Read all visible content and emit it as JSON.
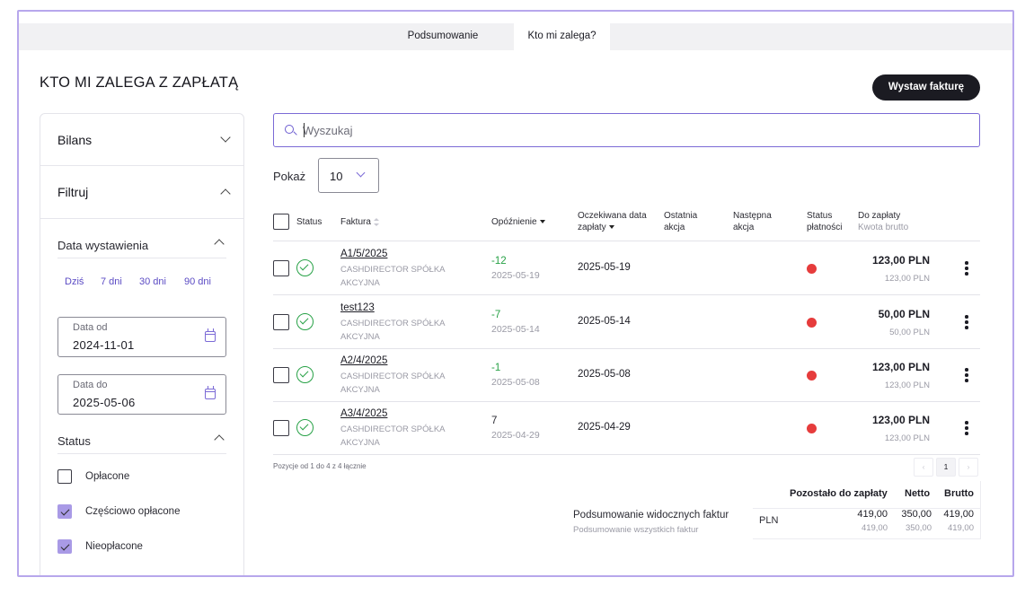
{
  "tabs": [
    {
      "label": "Podsumowanie",
      "active": false
    },
    {
      "label": "Kto mi zalega?",
      "active": true
    }
  ],
  "page": {
    "title": "KTO MI ZALEGA Z ZAPŁATĄ",
    "issue_button": "Wystaw fakturę"
  },
  "sidebar": {
    "balance": {
      "label": "Bilans",
      "icon": "chevron-down-icon"
    },
    "filter": {
      "label": "Filtruj",
      "icon": "chevron-up-icon"
    },
    "issue_date": {
      "label": "Data wystawienia",
      "quick": [
        "Dziś",
        "7 dni",
        "30 dni",
        "90 dni"
      ],
      "from": {
        "label": "Data od",
        "value": "2024-11-01"
      },
      "to": {
        "label": "Data do",
        "value": "2025-05-06"
      }
    },
    "status": {
      "label": "Status",
      "options": [
        {
          "label": "Opłacone",
          "checked": false
        },
        {
          "label": "Częściowo opłacone",
          "checked": true
        },
        {
          "label": "Nieopłacone",
          "checked": true
        }
      ]
    }
  },
  "search": {
    "placeholder": "Wyszukaj",
    "value": ""
  },
  "page_size": {
    "label": "Pokaż",
    "value": "10"
  },
  "table": {
    "headers": {
      "status": "Status",
      "invoice": "Faktura",
      "delay": "Opóźnienie",
      "expected_date_l1": "Oczekiwana data",
      "expected_date_l2": "zapłaty",
      "last_action_l1": "Ostatnia",
      "last_action_l2": "akcja",
      "next_action_l1": "Następna",
      "next_action_l2": "akcja",
      "payment_status_l1": "Status",
      "payment_status_l2": "płatności",
      "to_pay": "Do zapłaty",
      "to_pay_sub": "Kwota brutto"
    },
    "rows": [
      {
        "number": "A1/5/2025",
        "company_l1": "CASHDIRECTOR SPÓŁKA",
        "company_l2": "AKCYJNA",
        "delay": "-12",
        "delay_date": "2025-05-19",
        "due": "2025-05-19",
        "amount": "123,00 PLN",
        "amount_sub": "123,00 PLN"
      },
      {
        "number": "test123",
        "company_l1": "CASHDIRECTOR SPÓŁKA",
        "company_l2": "AKCYJNA",
        "delay": "-7",
        "delay_date": "2025-05-14",
        "due": "2025-05-14",
        "amount": "50,00 PLN",
        "amount_sub": "50,00 PLN"
      },
      {
        "number": "A2/4/2025",
        "company_l1": "CASHDIRECTOR SPÓŁKA",
        "company_l2": "AKCYJNA",
        "delay": "-1",
        "delay_date": "2025-05-08",
        "due": "2025-05-08",
        "amount": "123,00 PLN",
        "amount_sub": "123,00 PLN"
      },
      {
        "number": "A3/4/2025",
        "company_l1": "CASHDIRECTOR SPÓŁKA",
        "company_l2": "AKCYJNA",
        "delay": "7",
        "delay_date": "2025-04-29",
        "due": "2025-04-29",
        "amount": "123,00 PLN",
        "amount_sub": "123,00 PLN"
      }
    ]
  },
  "pagination": {
    "info": "Pozycje od 1 do 4 z 4 łącznie",
    "prev": "‹",
    "current": "1",
    "next": "›"
  },
  "summary": {
    "visible_label": "Podsumowanie widocznych faktur",
    "all_label": "Podsumowanie wszystkich faktur",
    "headers": {
      "remaining": "Pozostało do zapłaty",
      "net": "Netto",
      "gross": "Brutto"
    },
    "currency": "PLN",
    "visible": {
      "remaining": "419,00",
      "net": "350,00",
      "gross": "419,00"
    },
    "all": {
      "remaining": "419,00",
      "net": "350,00",
      "gross": "419,00"
    }
  },
  "colors": {
    "accent": "#7b6ad6",
    "ok": "#27a146",
    "unpaid": "#e63c3c",
    "frame": "#b7a7ec"
  }
}
